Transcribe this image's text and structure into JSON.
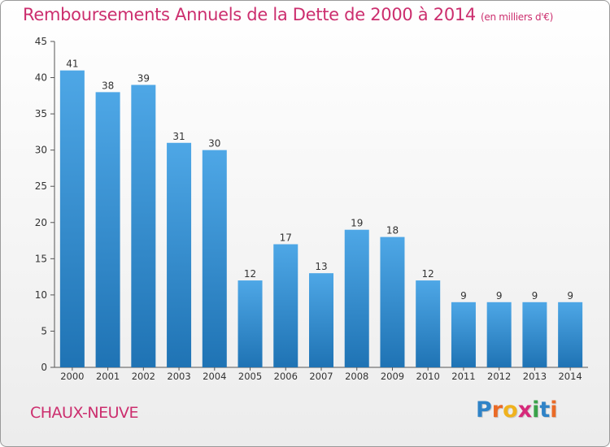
{
  "title": "Remboursements Annuels de la Dette de 2000 à 2014",
  "unit": "(en milliers d'€)",
  "commune": "CHAUX-NEUVE",
  "logo": {
    "letters": [
      "P",
      "r",
      "o",
      "x",
      "i",
      "t",
      "i"
    ],
    "colors": [
      "#2f83c7",
      "#ea6a26",
      "#f0b21d",
      "#d62a7a",
      "#3aa24a",
      "#2f83c7",
      "#ea6a26"
    ]
  },
  "colors": {
    "title": "#cc2e6e",
    "bar": "#4ea7e6",
    "bar_dark": "#1f73b4",
    "axis": "#555555"
  },
  "chart_data": {
    "type": "bar",
    "categories": [
      "2000",
      "2001",
      "2002",
      "2003",
      "2004",
      "2005",
      "2006",
      "2007",
      "2008",
      "2009",
      "2010",
      "2011",
      "2012",
      "2013",
      "2014"
    ],
    "values": [
      41,
      38,
      39,
      31,
      30,
      12,
      17,
      13,
      19,
      18,
      12,
      9,
      9,
      9,
      9
    ],
    "yticks": [
      0,
      5,
      10,
      15,
      20,
      25,
      30,
      35,
      40,
      45
    ],
    "ylim": [
      0,
      45
    ],
    "grid": false,
    "data_labels": true
  }
}
